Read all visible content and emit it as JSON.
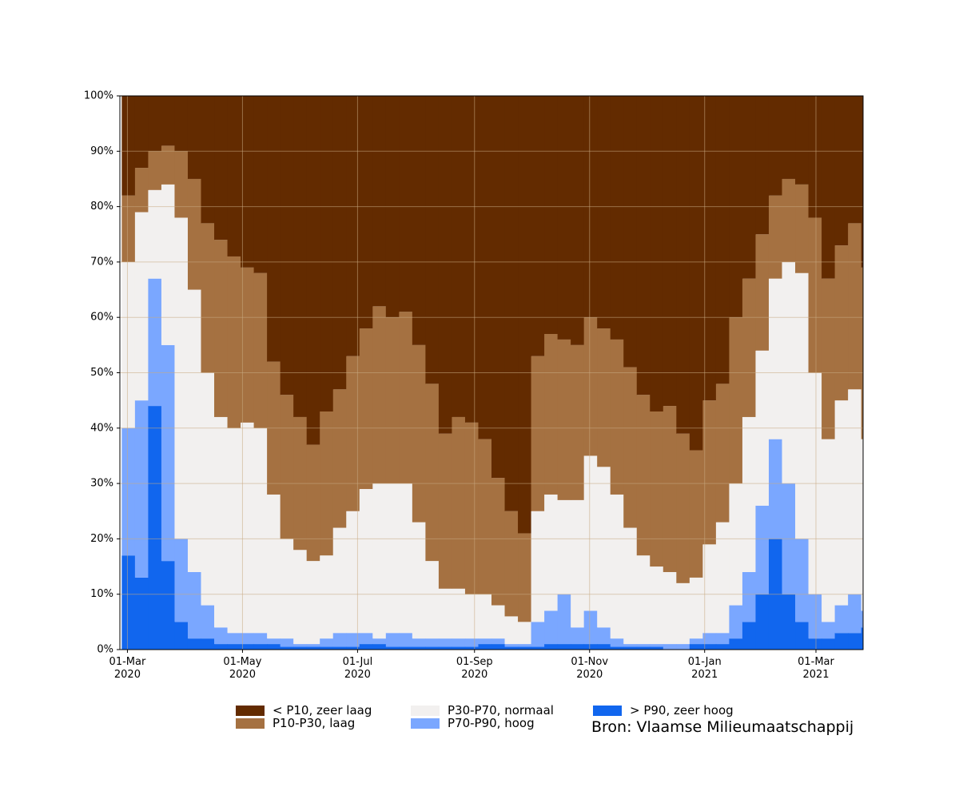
{
  "chart_data": {
    "type": "stacked-step-area",
    "x": [
      "2020-02-27",
      "2020-03-05",
      "2020-03-12",
      "2020-03-19",
      "2020-03-26",
      "2020-04-02",
      "2020-04-09",
      "2020-04-16",
      "2020-04-23",
      "2020-04-30",
      "2020-05-07",
      "2020-05-14",
      "2020-05-21",
      "2020-05-28",
      "2020-06-04",
      "2020-06-11",
      "2020-06-18",
      "2020-06-25",
      "2020-07-02",
      "2020-07-09",
      "2020-07-16",
      "2020-07-23",
      "2020-07-30",
      "2020-08-06",
      "2020-08-13",
      "2020-08-20",
      "2020-08-27",
      "2020-09-03",
      "2020-09-10",
      "2020-09-17",
      "2020-09-24",
      "2020-10-01",
      "2020-10-08",
      "2020-10-15",
      "2020-10-22",
      "2020-10-29",
      "2020-11-05",
      "2020-11-12",
      "2020-11-19",
      "2020-11-26",
      "2020-12-03",
      "2020-12-10",
      "2020-12-17",
      "2020-12-24",
      "2020-12-31",
      "2021-01-07",
      "2021-01-14",
      "2021-01-21",
      "2021-01-28",
      "2021-02-04",
      "2021-02-11",
      "2021-02-18",
      "2021-02-25",
      "2021-03-04",
      "2021-03-11",
      "2021-03-18",
      "2021-03-25"
    ],
    "xlim": [
      "2020-02-26",
      "2021-03-26"
    ],
    "xticks": [
      {
        "value": "2020-03-01",
        "label": "01-Mar\n2020"
      },
      {
        "value": "2020-05-01",
        "label": "01-May\n2020"
      },
      {
        "value": "2020-07-01",
        "label": "01-Jul\n2020"
      },
      {
        "value": "2020-09-01",
        "label": "01-Sep\n2020"
      },
      {
        "value": "2020-11-01",
        "label": "01-Nov\n2020"
      },
      {
        "value": "2021-01-01",
        "label": "01-Jan\n2021"
      },
      {
        "value": "2021-03-01",
        "label": "01-Mar\n2021"
      }
    ],
    "ylim": [
      0,
      100
    ],
    "yticks": [
      {
        "value": 0,
        "label": "0%"
      },
      {
        "value": 10,
        "label": "10%"
      },
      {
        "value": 20,
        "label": "20%"
      },
      {
        "value": 30,
        "label": "30%"
      },
      {
        "value": 40,
        "label": "40%"
      },
      {
        "value": 50,
        "label": "50%"
      },
      {
        "value": 60,
        "label": "60%"
      },
      {
        "value": 70,
        "label": "70%"
      },
      {
        "value": 80,
        "label": "80%"
      },
      {
        "value": 90,
        "label": "90%"
      },
      {
        "value": 100,
        "label": "100%"
      }
    ],
    "grid": true,
    "series": [
      {
        "name": "< P10, zeer laag",
        "color": "#632b00",
        "values": [
          18,
          13,
          10,
          9,
          10,
          15,
          23,
          26,
          29,
          31,
          32,
          48,
          54,
          58,
          63,
          57,
          53,
          47,
          42,
          38,
          40,
          39,
          45,
          52,
          61,
          58,
          59,
          62,
          69,
          75,
          79,
          47,
          43,
          44,
          45,
          40,
          42,
          44,
          49,
          54,
          57,
          56,
          61,
          64,
          55,
          52,
          40,
          33,
          25,
          18,
          15,
          16,
          22,
          33,
          27,
          23,
          31
        ]
      },
      {
        "name": "P10-P30, laag",
        "color": "#a57141",
        "values": [
          12,
          8,
          7,
          7,
          12,
          20,
          27,
          32,
          31,
          28,
          28,
          24,
          26,
          24,
          21,
          26,
          25,
          28,
          29,
          32,
          30,
          31,
          32,
          32,
          28,
          31,
          31,
          28,
          23,
          19,
          16,
          28,
          29,
          29,
          28,
          25,
          25,
          28,
          29,
          29,
          28,
          30,
          27,
          23,
          26,
          25,
          30,
          25,
          21,
          15,
          15,
          16,
          28,
          29,
          28,
          30,
          31
        ]
      },
      {
        "name": "P30-P70, normaal",
        "color": "#f2f0ef",
        "values": [
          30,
          34,
          16,
          29,
          58,
          51,
          42,
          38,
          37,
          38,
          37,
          26,
          18,
          17,
          15,
          15,
          19,
          22,
          26,
          28,
          27,
          27,
          21,
          14,
          9,
          9,
          8,
          8,
          6,
          5,
          4,
          20,
          21,
          17,
          23,
          28,
          29,
          26,
          21,
          16,
          14,
          13,
          11,
          11,
          16,
          20,
          22,
          28,
          28,
          29,
          40,
          48,
          40,
          33,
          37,
          37,
          31
        ]
      },
      {
        "name": "P70-P90, hoog",
        "color": "#7aa7ff",
        "values": [
          23,
          32,
          23,
          39,
          15,
          12,
          6,
          3,
          2,
          2,
          2,
          1,
          1.5,
          0.5,
          0.5,
          1.5,
          2.5,
          2.5,
          2,
          1,
          2.5,
          2.5,
          1.5,
          1.5,
          1.5,
          1.5,
          1.5,
          1,
          1,
          0.5,
          0.5,
          4.5,
          6,
          9,
          3,
          6,
          3,
          1.5,
          0.5,
          0.5,
          0.5,
          1,
          1,
          1,
          2,
          2,
          6,
          9,
          16,
          18,
          20,
          15,
          8,
          3,
          5,
          7,
          3
        ]
      },
      {
        "name": "> P90, zeer hoog",
        "color": "#1166ee",
        "values": [
          17,
          13,
          44,
          16,
          5,
          2,
          2,
          1,
          1,
          1,
          1,
          1,
          0.5,
          0.5,
          0.5,
          0.5,
          0.5,
          0.5,
          1,
          1,
          0.5,
          0.5,
          0.5,
          0.5,
          0.5,
          0.5,
          0.5,
          1,
          1,
          0.5,
          0.5,
          0.5,
          1,
          1,
          1,
          1,
          1,
          0.5,
          0.5,
          0.5,
          0.5,
          0,
          0,
          1,
          1,
          1,
          2,
          5,
          10,
          20,
          10,
          5,
          2,
          2,
          3,
          3,
          4
        ]
      }
    ],
    "source": "Bron: Vlaamse Milieumaatschappij"
  }
}
